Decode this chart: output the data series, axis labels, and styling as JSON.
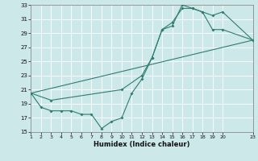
{
  "xlabel": "Humidex (Indice chaleur)",
  "xlim": [
    1,
    23
  ],
  "ylim": [
    15,
    33
  ],
  "xticks": [
    1,
    2,
    3,
    4,
    5,
    6,
    7,
    8,
    9,
    10,
    11,
    12,
    13,
    14,
    15,
    16,
    17,
    18,
    19,
    20,
    23
  ],
  "yticks": [
    15,
    17,
    19,
    21,
    23,
    25,
    27,
    29,
    31,
    33
  ],
  "bg_color": "#cce8e8",
  "line_color": "#2e7d6e",
  "grid_color": "#ffffff",
  "line1_x": [
    1,
    2,
    3,
    4,
    5,
    6,
    7,
    8,
    9,
    10,
    11,
    12,
    13,
    14,
    15,
    16,
    17,
    18,
    19,
    20,
    23
  ],
  "line1_y": [
    20.5,
    18.5,
    18,
    18,
    18,
    17.5,
    17.5,
    15.5,
    16.5,
    17,
    20.5,
    22.5,
    25.5,
    29.5,
    30,
    33,
    32.5,
    32,
    29.5,
    29.5,
    28
  ],
  "line2_x": [
    1,
    3,
    10,
    12,
    13,
    14,
    15,
    16,
    17,
    18,
    19,
    20,
    23
  ],
  "line2_y": [
    20.5,
    19.5,
    21,
    23,
    25.5,
    29.5,
    30.5,
    32.5,
    32.5,
    32,
    31.5,
    32,
    28
  ],
  "line3_x": [
    1,
    23
  ],
  "line3_y": [
    20.5,
    28
  ]
}
